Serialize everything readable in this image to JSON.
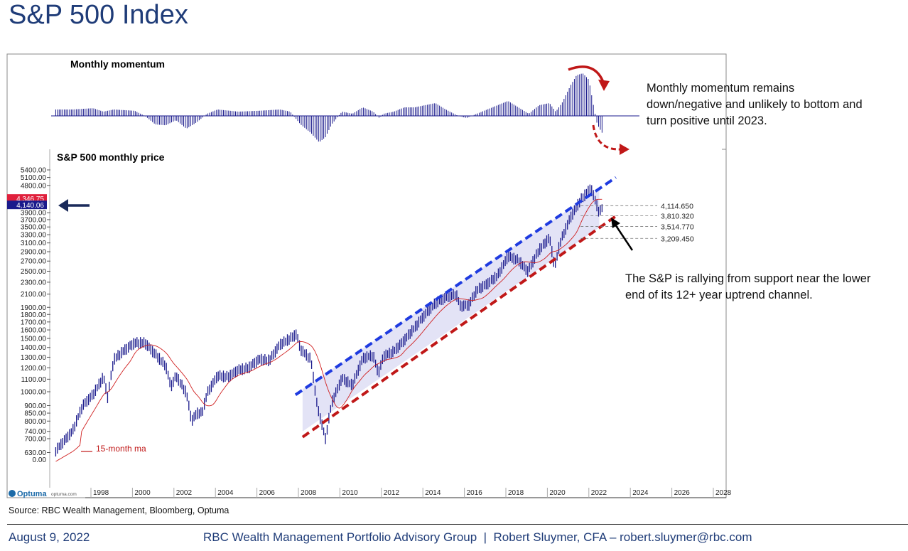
{
  "page": {
    "title": "S&P 500 Index",
    "source": "Source: RBC Wealth Management, Bloomberg, Optuma",
    "footer_date": "August 9, 2022",
    "footer_credit": "RBC Wealth Management Portfolio Advisory Group  |  Robert Sluymer, CFA – robert.sluymer@rbc.com",
    "logo_text": "Optuma",
    "logo_url_text": "optuma.com"
  },
  "annotations": {
    "momentum_note": [
      "Monthly momentum remains",
      "down/negative and unlikely to bottom and",
      "turn positive until 2023."
    ],
    "support_note": [
      "The S&P is rallying from support near the lower",
      "end of its 12+ year uptrend channel."
    ],
    "ma_legend": "15-month ma"
  },
  "colors": {
    "bars": "#1a1a8c",
    "ma": "#d02020",
    "upper_channel": "#1f3be0",
    "lower_channel": "#c01818",
    "channel_fill": "#dcdcf4",
    "price_label_red": "#e0203c",
    "price_label_navy": "#1a1a8c",
    "title": "#1f3c78"
  },
  "chart_data": [
    {
      "type": "bar",
      "title": "Monthly momentum",
      "x_unit": "year",
      "x": [
        1996.2,
        1997,
        1998,
        1998.5,
        1999,
        2000,
        2000.5,
        2001,
        2001.5,
        2002,
        2002.5,
        2003,
        2003.5,
        2004,
        2005,
        2006,
        2007,
        2007.5,
        2008,
        2008.5,
        2008.9,
        2009.2,
        2009.5,
        2010,
        2010.5,
        2011,
        2011.5,
        2011.8,
        2012,
        2012.5,
        2013,
        2013.5,
        2014,
        2014.5,
        2015,
        2015.6,
        2016,
        2016.5,
        2017,
        2017.5,
        2018,
        2018.5,
        2019,
        2019.5,
        2020,
        2020.3,
        2020.6,
        2021,
        2021.3,
        2021.6,
        2021.9,
        2022.1,
        2022.3,
        2022.6
      ],
      "values": [
        0.15,
        0.15,
        0.18,
        0.1,
        0.15,
        0.12,
        0,
        -0.2,
        -0.22,
        -0.1,
        -0.3,
        -0.15,
        0.05,
        0.15,
        0.1,
        0.12,
        0.15,
        0.1,
        -0.2,
        -0.4,
        -0.62,
        -0.5,
        -0.2,
        0.1,
        0.05,
        0.2,
        0.1,
        -0.05,
        0.05,
        0.1,
        0.2,
        0.2,
        0.25,
        0.3,
        0.15,
        0,
        -0.05,
        0.05,
        0.15,
        0.25,
        0.35,
        0.2,
        0.05,
        0.25,
        0.3,
        0.1,
        0.3,
        0.7,
        0.95,
        1.0,
        0.85,
        0.3,
        -0.2,
        -0.45
      ],
      "zero_line": 0
    },
    {
      "type": "bar",
      "title": "S&P 500 monthly price",
      "y_scale": "log",
      "ylim": [
        580,
        5600
      ],
      "y_ticks": [
        "5400.00",
        "5100.00",
        "4800.00",
        "3900.00",
        "3700.00",
        "3500.00",
        "3300.00",
        "3100.00",
        "2900.00",
        "2700.00",
        "2500.00",
        "2300.00",
        "2100.00",
        "1900.00",
        "1800.00",
        "1700.00",
        "1600.00",
        "1500.00",
        "1400.00",
        "1300.00",
        "1200.00",
        "1100.00",
        "1000.00",
        "900.00",
        "850.00",
        "800.00",
        "740.00",
        "700.00",
        "630.00"
      ],
      "y_tick_values": [
        5400,
        5100,
        4800,
        3900,
        3700,
        3500,
        3300,
        3100,
        2900,
        2700,
        2500,
        2300,
        2100,
        1900,
        1800,
        1700,
        1600,
        1500,
        1400,
        1300,
        1200,
        1100,
        1000,
        900,
        850,
        800,
        740,
        700,
        630
      ],
      "y_zero_label": "0.00",
      "price_labels": [
        {
          "text": "4,346.75",
          "value": 4346.75,
          "color": "red"
        },
        {
          "text": "4,140.06",
          "value": 4140.06,
          "color": "navy"
        }
      ],
      "x_ticks": [
        "1998",
        "2000",
        "2002",
        "2004",
        "2006",
        "2008",
        "2010",
        "2012",
        "2014",
        "2016",
        "2018",
        "2020",
        "2022",
        "2024",
        "2026",
        "2028"
      ],
      "x_tick_values": [
        1998,
        2000,
        2002,
        2004,
        2006,
        2008,
        2010,
        2012,
        2014,
        2016,
        2018,
        2020,
        2022,
        2024,
        2026,
        2028
      ],
      "xlim": [
        1996.2,
        2028.3
      ],
      "series": [
        {
          "name": "S&P 500",
          "x": [
            1996.2,
            1997,
            1997.5,
            1998,
            1998.5,
            1998.7,
            1999,
            1999.5,
            2000,
            2000.5,
            2001,
            2001.5,
            2001.75,
            2002,
            2002.5,
            2002.75,
            2003,
            2003.25,
            2003.5,
            2004,
            2004.5,
            2005,
            2005.5,
            2006,
            2006.5,
            2007,
            2007.5,
            2007.8,
            2008,
            2008.5,
            2008.8,
            2009.2,
            2009.5,
            2010,
            2010.5,
            2011,
            2011.5,
            2011.75,
            2012,
            2012.5,
            2013,
            2013.5,
            2014,
            2014.5,
            2015,
            2015.5,
            2015.7,
            2016.1,
            2016.5,
            2017,
            2017.5,
            2018,
            2018.5,
            2018.95,
            2019.5,
            2020,
            2020.25,
            2020.5,
            2021,
            2021.5,
            2022,
            2022.4,
            2022.6
          ],
          "values": [
            640,
            740,
            900,
            980,
            1120,
            960,
            1280,
            1370,
            1450,
            1450,
            1330,
            1220,
            1040,
            1130,
            990,
            800,
            850,
            850,
            990,
            1130,
            1120,
            1180,
            1200,
            1280,
            1270,
            1430,
            1500,
            1550,
            1380,
            1280,
            900,
            700,
            920,
            1110,
            1050,
            1290,
            1320,
            1150,
            1310,
            1360,
            1480,
            1630,
            1800,
            1960,
            2050,
            2100,
            1920,
            1930,
            2170,
            2270,
            2420,
            2800,
            2720,
            2500,
            2940,
            3230,
            2580,
            3100,
            3750,
            4300,
            4700,
            3900,
            4140
          ]
        }
      ],
      "moving_average": {
        "name": "15-month ma",
        "period_months": 15
      },
      "channel": {
        "upper": {
          "x": [
            2008.1,
            2023.2
          ],
          "values": [
            1020,
            5100
          ]
        },
        "lower": {
          "x": [
            2008.1,
            2023.2
          ],
          "values": [
            740,
            3800
          ]
        }
      },
      "levels": [
        {
          "text": "4,114.650",
          "value": 4114.65
        },
        {
          "text": "3,810.320",
          "value": 3810.32
        },
        {
          "text": "3,514.770",
          "value": 3514.77
        },
        {
          "text": "3,209.450",
          "value": 3209.45
        }
      ]
    }
  ]
}
